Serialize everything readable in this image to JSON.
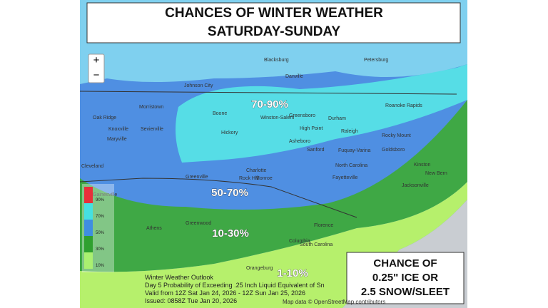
{
  "title_lines": [
    "CHANCES OF WINTER WEATHER",
    "SATURDAY-SUNDAY"
  ],
  "zoom": {
    "in": "+",
    "out": "−"
  },
  "legend": [
    {
      "label": "90%",
      "color": "#e8303a"
    },
    {
      "label": "70%",
      "color": "#45e0e0"
    },
    {
      "label": "50%",
      "color": "#3f8ee0"
    },
    {
      "label": "30%",
      "color": "#2fa02f"
    },
    {
      "label": "10%",
      "color": "#aaf070"
    }
  ],
  "band_labels": [
    "70-90%",
    "50-70%",
    "10-30%",
    "1-10%"
  ],
  "cities": [
    "Blacksburg",
    "Petersburg",
    "Danville",
    "Roanoke Rapids",
    "Johnson City",
    "Morristown",
    "Boone",
    "Winston-Salem",
    "Greensboro",
    "Durham",
    "Oak Ridge",
    "Knoxville",
    "Sevierville",
    "Maryville",
    "Hickory",
    "High Point",
    "Raleigh",
    "Rocky Mount",
    "Asheboro",
    "Cleveland",
    "Sanford",
    "Fuquay-Varina",
    "Goldsboro",
    "Charlotte",
    "Rock Hill",
    "Monroe",
    "Greenville",
    "North Carolina",
    "Fayetteville",
    "Kinston",
    "New Bern",
    "Gainesville",
    "Jacksonville",
    "Athens",
    "Greenwood",
    "Florence",
    "Columbia",
    "South Carolina",
    "Orangeburg"
  ],
  "info": [
    "Winter Weather Outlook",
    "Day 5 Probability of Exceeding .25 Inch Liquid Equivalent of Sn",
    "Valid from 12Z Sat Jan 24, 2026 - 12Z Sun Jan 25, 2026",
    "Issued: 0858Z Tue Jan 20, 2026"
  ],
  "callout": [
    "CHANCE OF",
    "0.25\" ICE OR",
    "2.5 SNOW/SLEET"
  ],
  "attribution": "Map data © OpenStreetMap contributors"
}
